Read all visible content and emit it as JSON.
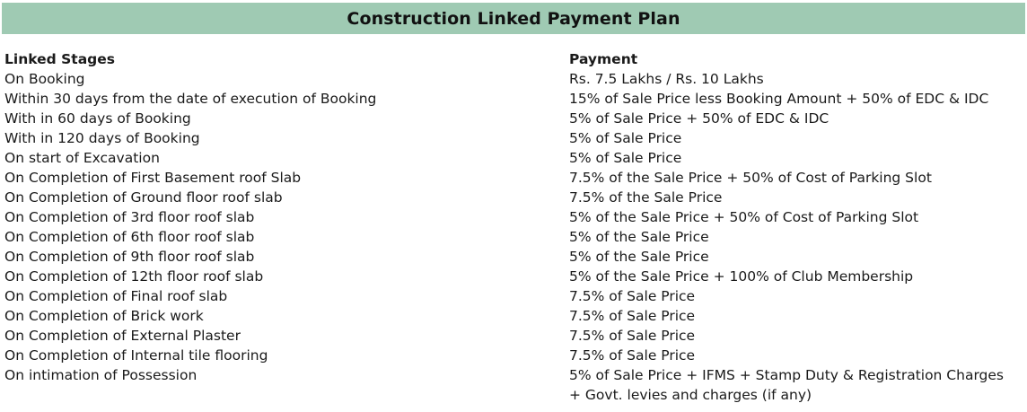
{
  "title": "Construction Linked Payment Plan",
  "headers": {
    "stage": "Linked Stages",
    "payment": "Payment"
  },
  "rows": [
    {
      "stage": "On Booking",
      "payment": "Rs. 7.5 Lakhs / Rs. 10 Lakhs"
    },
    {
      "stage": "Within 30 days from the date of execution of Booking",
      "payment": "15% of Sale Price less Booking Amount + 50% of EDC & IDC"
    },
    {
      "stage": "With in 60 days of Booking",
      "payment": "5% of Sale Price + 50% of EDC & IDC"
    },
    {
      "stage": "With in 120 days of Booking",
      "payment": "5% of Sale Price"
    },
    {
      "stage": "On start of Excavation",
      "payment": "5% of Sale Price"
    },
    {
      "stage": "On Completion of First Basement roof Slab",
      "payment": "7.5% of the Sale Price + 50% of Cost of Parking Slot"
    },
    {
      "stage": "On Completion of Ground floor roof slab",
      "payment": "7.5% of the Sale Price"
    },
    {
      "stage": "On Completion of 3rd floor roof slab",
      "payment": "5% of the Sale Price + 50% of Cost of Parking Slot"
    },
    {
      "stage": "On Completion of 6th floor roof slab",
      "payment": "5% of the Sale Price"
    },
    {
      "stage": "On Completion of 9th floor roof slab",
      "payment": "5% of the Sale Price"
    },
    {
      "stage": "On Completion of 12th floor roof slab",
      "payment": "5% of the Sale Price + 100% of Club Membership"
    },
    {
      "stage": "On Completion of Final roof slab",
      "payment": "7.5% of Sale Price"
    },
    {
      "stage": "On Completion of Brick work",
      "payment": "7.5% of Sale Price"
    },
    {
      "stage": "On Completion of External Plaster",
      "payment": "7.5% of Sale Price"
    },
    {
      "stage": "On Completion of Internal tile flooring",
      "payment": "7.5% of Sale Price"
    },
    {
      "stage": "On intimation of Possession",
      "payment": "5% of Sale Price + IFMS + Stamp Duty & Registration Charges"
    }
  ],
  "continuation": "+ Govt. levies and charges (if any)"
}
